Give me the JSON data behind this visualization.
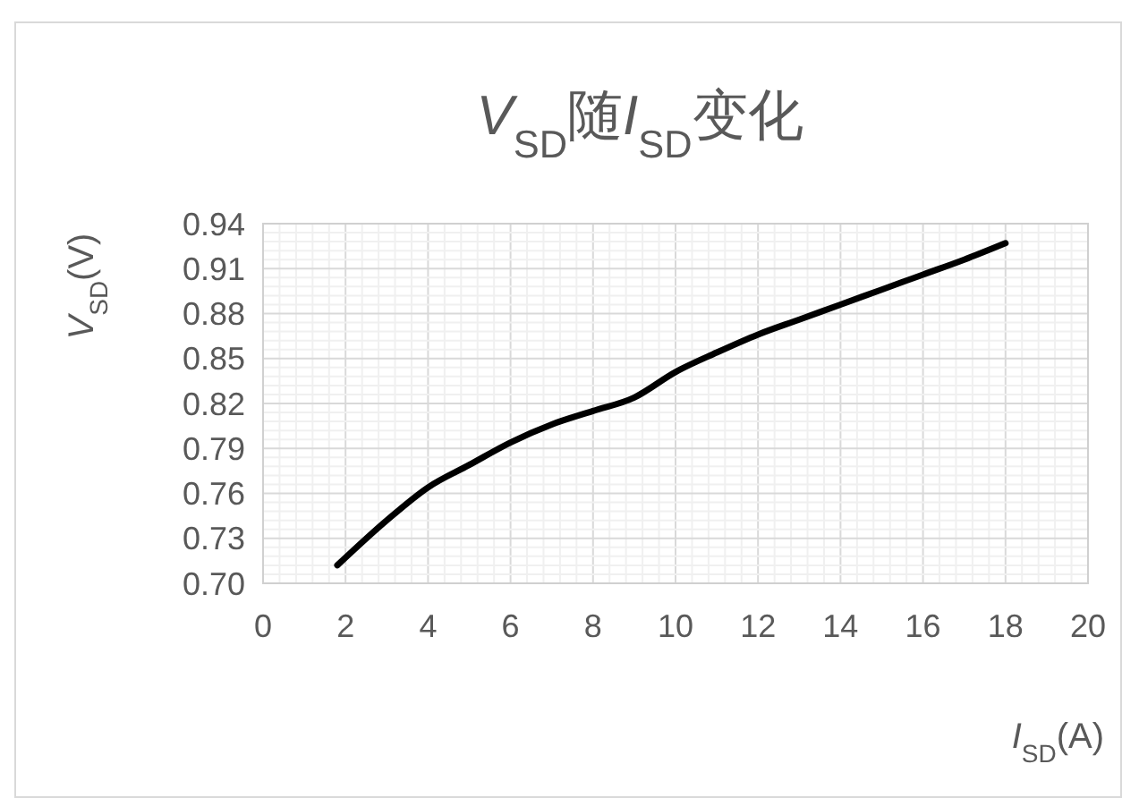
{
  "chart_data": {
    "type": "line",
    "title": "V$_{SD}$随I$_{SD}$变化",
    "xlabel": "I$_{SD}$(A)",
    "ylabel": "V$_{SD}$(V)",
    "x": [
      1.8,
      3,
      4,
      5,
      6,
      7,
      8,
      9,
      10,
      11,
      12,
      13,
      14,
      15,
      16,
      17,
      18
    ],
    "series": [
      {
        "color": "#000000",
        "values": [
          0.712,
          0.742,
          0.764,
          0.779,
          0.794,
          0.806,
          0.815,
          0.824,
          0.841,
          0.854,
          0.866,
          0.876,
          0.886,
          0.896,
          0.906,
          0.916,
          0.927
        ]
      }
    ],
    "xlim": [
      0,
      20
    ],
    "xticks": [
      0,
      2,
      4,
      6,
      8,
      10,
      12,
      14,
      16,
      18,
      20
    ],
    "ylim": [
      0.7,
      0.94
    ],
    "yticks": [
      {
        "value": 0.7,
        "label": "0.70"
      },
      {
        "value": 0.73,
        "label": "0.73"
      },
      {
        "value": 0.76,
        "label": "0.76"
      },
      {
        "value": 0.79,
        "label": "0.79"
      },
      {
        "value": 0.82,
        "label": "0.82"
      },
      {
        "value": 0.85,
        "label": "0.85"
      },
      {
        "value": 0.88,
        "label": "0.88"
      },
      {
        "value": 0.91,
        "label": "0.91"
      },
      {
        "value": 0.94,
        "label": "0.94"
      }
    ],
    "grid": true,
    "marker": "none",
    "line_style": "solid"
  }
}
